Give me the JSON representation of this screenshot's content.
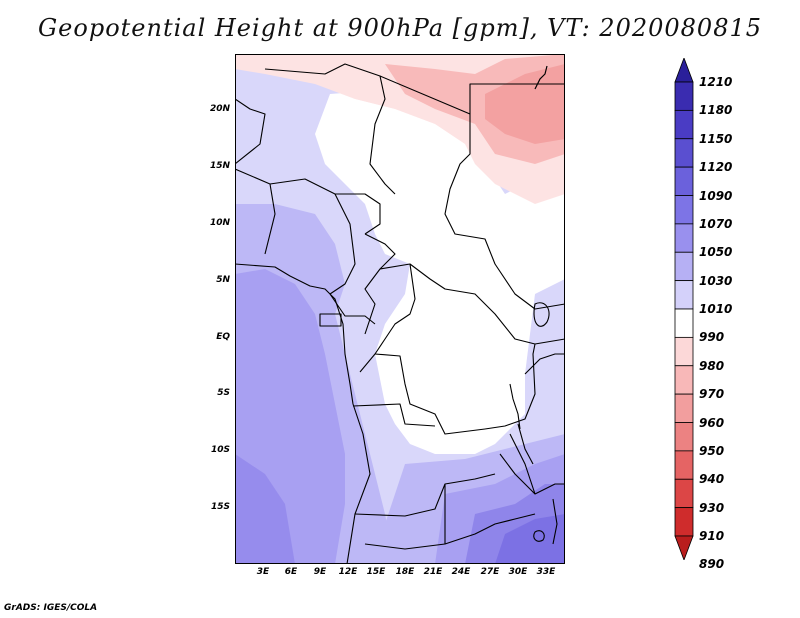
{
  "title": "Geopotential Height at 900hPa [gpm], VT: 2020080815",
  "credit": "GrADS: IGES/COLA",
  "map": {
    "variable": "Geopotential Height",
    "level": "900hPa",
    "units": "gpm",
    "valid_time": "2020080815",
    "lat_labels": [
      "20N",
      "15N",
      "10N",
      "5N",
      "EQ",
      "5S",
      "10S",
      "15S"
    ],
    "lon_labels": [
      "3E",
      "6E",
      "9E",
      "12E",
      "15E",
      "18E",
      "21E",
      "24E",
      "27E",
      "30E",
      "33E"
    ]
  },
  "colorbar": {
    "levels": [
      "1210",
      "1180",
      "1150",
      "1120",
      "1090",
      "1070",
      "1050",
      "1030",
      "1010",
      "990",
      "980",
      "970",
      "960",
      "950",
      "940",
      "930",
      "910",
      "890"
    ],
    "colors": [
      "#2a1f9a",
      "#3a2cb0",
      "#4a3cc4",
      "#5a4fd0",
      "#6b61dc",
      "#7d74e6",
      "#9990ee",
      "#b6b0f4",
      "#d4d1fa",
      "#ffffff",
      "#fcd8d8",
      "#f8b8b8",
      "#f29e9e",
      "#ec8282",
      "#e56464",
      "#dc4646",
      "#cf2c2c",
      "#b91d1d"
    ]
  }
}
